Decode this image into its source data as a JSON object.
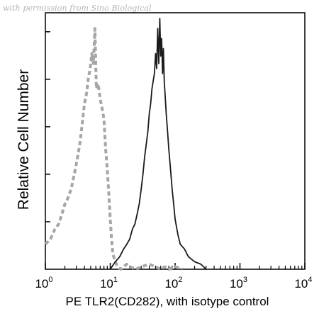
{
  "watermark": "with permission from Sino Biological",
  "chart_data": {
    "type": "line",
    "xlabel": "PE TLR2(CD282), with isotype control",
    "ylabel": "Relative Cell Number",
    "x_scale": "log",
    "xlim": [
      1,
      10000
    ],
    "ylim": [
      0,
      100
    ],
    "x_ticks": [
      {
        "value": 1,
        "base": "10",
        "exp": "0"
      },
      {
        "value": 10,
        "base": "10",
        "exp": "1"
      },
      {
        "value": 100,
        "base": "10",
        "exp": "2"
      },
      {
        "value": 1000,
        "base": "10",
        "exp": "3"
      },
      {
        "value": 10000,
        "base": "10",
        "exp": "4"
      }
    ],
    "grid": false,
    "legend": "none",
    "series": [
      {
        "style": "dashed",
        "color": "#a6a6a6",
        "x": [
          1.0,
          1.2,
          1.4,
          1.6,
          1.8,
          2.0,
          2.2,
          2.5,
          2.8,
          3.1,
          3.4,
          3.7,
          4.0,
          4.3,
          4.6,
          4.9,
          5.2,
          5.5,
          5.8,
          6.1,
          6.5,
          7.0,
          7.5,
          8.0,
          8.5,
          9.0,
          9.5,
          10.0,
          10.5,
          11.0,
          12.0,
          13.0,
          14.5,
          16.0,
          18.0,
          20.0,
          25.0,
          30.0,
          40.0,
          50.0,
          60.0,
          70.0,
          80.0,
          100.0,
          130.0
        ],
        "y": [
          10,
          12,
          16,
          18,
          22,
          26,
          28,
          32,
          38,
          44,
          50,
          58,
          66,
          70,
          76,
          80,
          86,
          82,
          96,
          72,
          74,
          68,
          64,
          60,
          48,
          40,
          30,
          20,
          12,
          6,
          3,
          1,
          0,
          1,
          2,
          1,
          0,
          1,
          2,
          1,
          0,
          1,
          0,
          1,
          0
        ]
      },
      {
        "style": "solid",
        "color": "#1a1a1a",
        "x": [
          10.0,
          12.0,
          14.0,
          16.0,
          18.0,
          20.0,
          22.0,
          24.0,
          26.0,
          28.0,
          30.0,
          32.0,
          34.0,
          36.0,
          38.0,
          40.0,
          42.0,
          44.0,
          46.0,
          48.0,
          50.0,
          52.0,
          54.0,
          56.0,
          58.0,
          60.0,
          62.0,
          64.0,
          66.0,
          68.0,
          70.0,
          73.0,
          76.0,
          80.0,
          85.0,
          90.0,
          95.0,
          100.0,
          110.0,
          120.0,
          140.0,
          160.0,
          200.0,
          250.0,
          300.0
        ],
        "y": [
          0,
          3,
          5,
          8,
          10,
          12,
          16,
          18,
          22,
          26,
          32,
          38,
          45,
          50,
          55,
          62,
          66,
          72,
          75,
          78,
          86,
          80,
          96,
          82,
          100,
          85,
          92,
          78,
          88,
          75,
          70,
          62,
          56,
          48,
          40,
          32,
          26,
          20,
          14,
          10,
          8,
          5,
          3,
          2,
          0
        ]
      }
    ]
  }
}
